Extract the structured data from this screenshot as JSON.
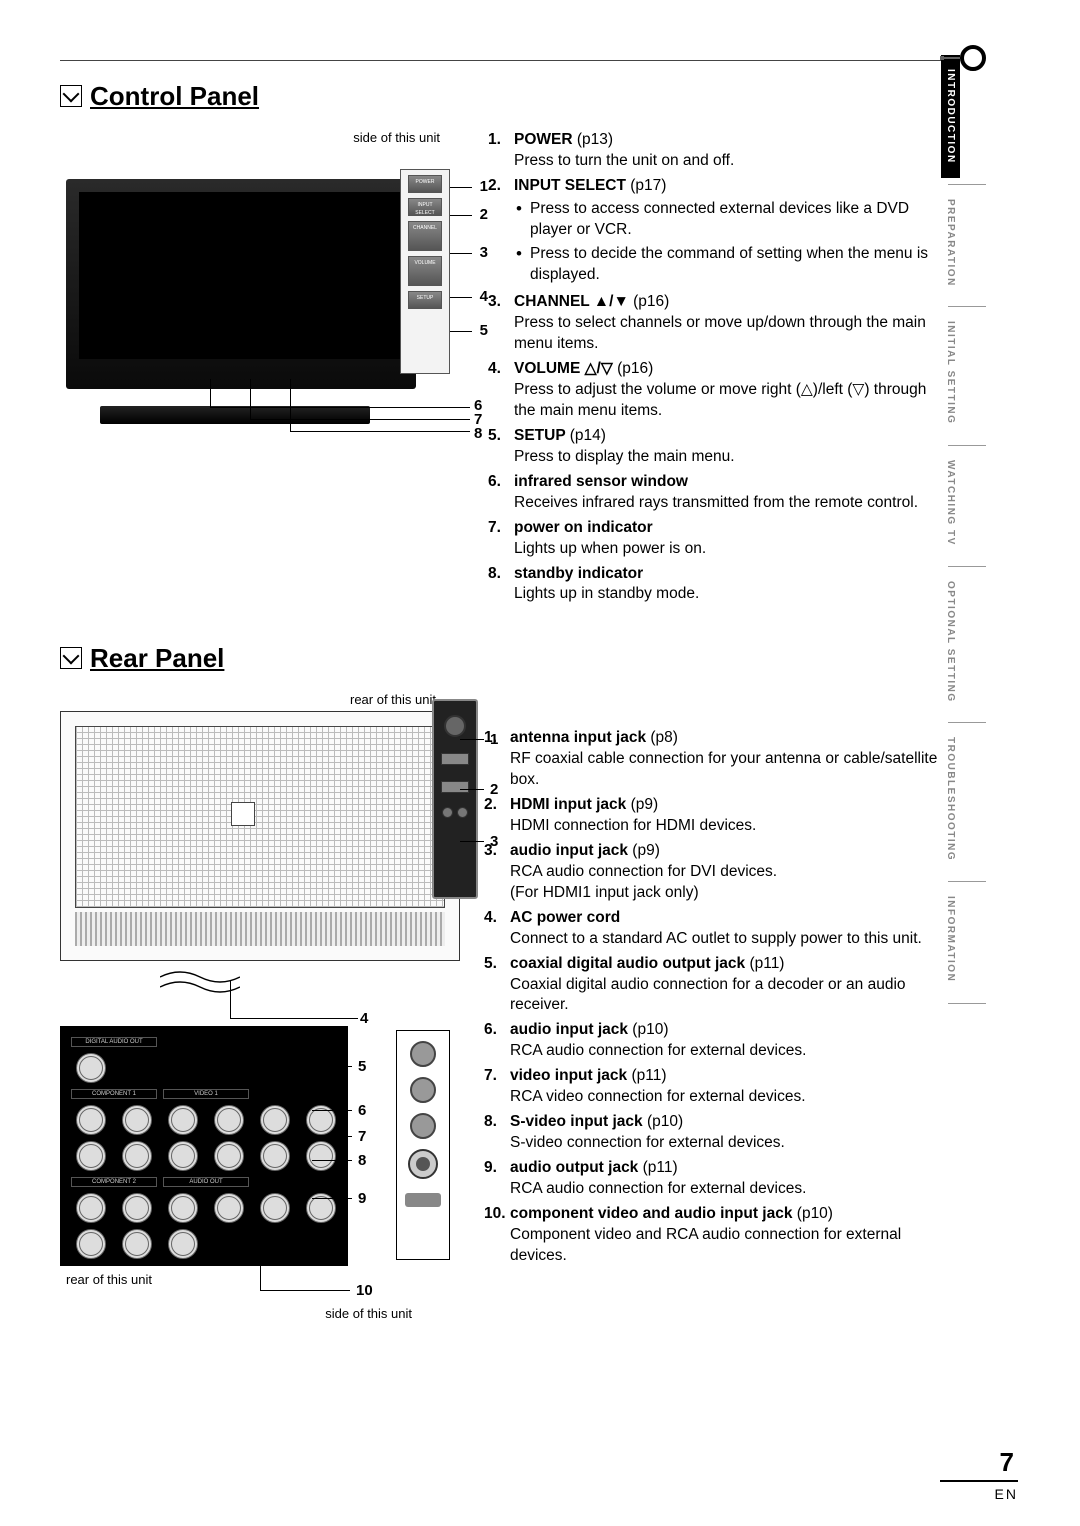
{
  "page": {
    "number": "7",
    "lang": "EN"
  },
  "side_tabs": {
    "items": [
      {
        "label": "INTRODUCTION",
        "active": true
      },
      {
        "label": "PREPARATION",
        "active": false
      },
      {
        "label": "INITIAL SETTING",
        "active": false
      },
      {
        "label": "WATCHING TV",
        "active": false
      },
      {
        "label": "OPTIONAL SETTING",
        "active": false
      },
      {
        "label": "TROUBLESHOOTING",
        "active": false
      },
      {
        "label": "INFORMATION",
        "active": false
      }
    ],
    "style": {
      "active_bg": "#000000",
      "active_color": "#ffffff",
      "inactive_color": "#888888",
      "fontsize": 10
    }
  },
  "control_panel": {
    "heading": "Control Panel",
    "fig_caption": "side of this unit",
    "side_buttons": [
      "POWER",
      "INPUT SELECT",
      "CHANNEL",
      "VOLUME",
      "SETUP"
    ],
    "callouts": [
      "1",
      "2",
      "3",
      "4",
      "5",
      "6",
      "7",
      "8"
    ],
    "items": [
      {
        "n": "1.",
        "title": "POWER",
        "ref": "(p13)",
        "desc": "Press to turn the unit on and off."
      },
      {
        "n": "2.",
        "title": "INPUT SELECT",
        "ref": "(p17)",
        "bullets": [
          "Press to access connected external devices like a DVD player or VCR.",
          "Press to decide the command of setting when the menu is displayed."
        ]
      },
      {
        "n": "3.",
        "title": "CHANNEL ▲/▼",
        "ref": "(p16)",
        "desc": "Press to select channels or move up/down through the main menu items."
      },
      {
        "n": "4.",
        "title": "VOLUME △/▽",
        "ref": "(p16)",
        "desc": "Press to adjust the volume or move right (△)/left (▽) through the main menu items."
      },
      {
        "n": "5.",
        "title": "SETUP",
        "ref": "(p14)",
        "desc": "Press to display the main menu."
      },
      {
        "n": "6.",
        "title": "infrared sensor window",
        "ref": "",
        "desc": "Receives infrared rays transmitted from the remote control."
      },
      {
        "n": "7.",
        "title": "power on indicator",
        "ref": "",
        "desc": "Lights up when power is on."
      },
      {
        "n": "8.",
        "title": "standby indicator",
        "ref": "",
        "desc": "Lights up in standby mode."
      }
    ]
  },
  "rear_panel": {
    "heading": "Rear Panel",
    "fig_caption_top": "rear of this unit",
    "fig_caption_bl": "rear of this unit",
    "fig_caption_br": "side of this unit",
    "callouts": [
      "1",
      "2",
      "3",
      "4",
      "5",
      "6",
      "7",
      "8",
      "9",
      "10"
    ],
    "items": [
      {
        "n": "1.",
        "title": "antenna input jack",
        "ref": "(p8)",
        "desc": "RF coaxial cable connection for your antenna or cable/satellite box."
      },
      {
        "n": "2.",
        "title": "HDMI input jack",
        "ref": "(p9)",
        "desc": "HDMI connection for HDMI devices."
      },
      {
        "n": "3.",
        "title": "audio input jack",
        "ref": "(p9)",
        "desc": "RCA audio connection for DVI devices.\n(For HDMI1 input jack only)"
      },
      {
        "n": "4.",
        "title": "AC power cord",
        "ref": "",
        "desc": "Connect to a standard AC outlet to supply power to this unit."
      },
      {
        "n": "5.",
        "title": "coaxial digital audio output jack",
        "ref": "(p11)",
        "desc": "Coaxial digital audio connection for a decoder or an audio receiver."
      },
      {
        "n": "6.",
        "title": "audio input jack",
        "ref": "(p10)",
        "desc": "RCA audio connection for external devices."
      },
      {
        "n": "7.",
        "title": "video input jack",
        "ref": "(p11)",
        "desc": "RCA video connection for external devices."
      },
      {
        "n": "8.",
        "title": "S-video input jack",
        "ref": "(p10)",
        "desc": "S-video connection for external devices."
      },
      {
        "n": "9.",
        "title": "audio output jack",
        "ref": "(p11)",
        "desc": "RCA audio connection for external devices."
      },
      {
        "n": "10.",
        "title": "component video and audio input jack",
        "ref": "(p10)",
        "desc": "Component video and RCA audio connection for external devices."
      }
    ]
  },
  "colors": {
    "text": "#000000",
    "muted": "#888888",
    "rule": "#444444",
    "bg": "#ffffff"
  }
}
